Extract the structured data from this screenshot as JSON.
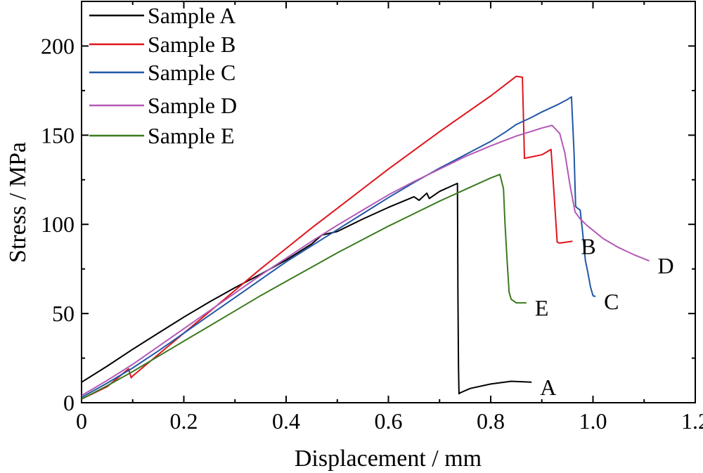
{
  "chart_data": {
    "type": "line",
    "title": "",
    "xlabel": "Displacement / mm",
    "ylabel": "Stress / MPa",
    "xlim": [
      0,
      1.2
    ],
    "ylim": [
      0,
      225
    ],
    "x_ticks": [
      0,
      0.2,
      0.4,
      0.6,
      0.8,
      1.0,
      1.2
    ],
    "x_tick_labels": [
      "0",
      "0.2",
      "0.4",
      "0.6",
      "0.8",
      "1.0",
      "1.2"
    ],
    "y_ticks": [
      0,
      50,
      100,
      150,
      200
    ],
    "y_tick_labels": [
      "0",
      "50",
      "100",
      "150",
      "200"
    ],
    "grid": false,
    "legend_position": "top-left",
    "series": [
      {
        "name": "Sample A",
        "end_label": "A",
        "color": "#000000",
        "x": [
          0.0,
          0.05,
          0.1,
          0.15,
          0.2,
          0.25,
          0.3,
          0.35,
          0.4,
          0.45,
          0.47,
          0.5,
          0.55,
          0.6,
          0.65,
          0.66,
          0.675,
          0.68,
          0.7,
          0.735,
          0.736,
          0.737,
          0.738,
          0.74,
          0.76,
          0.8,
          0.84,
          0.88
        ],
        "y": [
          11.5,
          20.5,
          30,
          39,
          48,
          56.5,
          64.5,
          72,
          80,
          89,
          94,
          96,
          103,
          109.5,
          115.5,
          113.5,
          117.5,
          114.5,
          118.5,
          123,
          60,
          20,
          5,
          5.5,
          8,
          10.5,
          12,
          11.5
        ]
      },
      {
        "name": "Sample B",
        "end_label": "B",
        "color": "#e0141c",
        "x": [
          0.0,
          0.05,
          0.092,
          0.097,
          0.1,
          0.15,
          0.2,
          0.25,
          0.3,
          0.35,
          0.4,
          0.45,
          0.5,
          0.55,
          0.6,
          0.65,
          0.7,
          0.75,
          0.8,
          0.85,
          0.862,
          0.864,
          0.866,
          0.9,
          0.918,
          0.922,
          0.93,
          0.935,
          0.96
        ],
        "y": [
          2,
          9,
          19,
          14,
          15,
          27,
          39,
          51,
          63,
          75,
          86.5,
          98,
          109,
          120,
          131,
          141.5,
          152,
          162,
          172,
          183,
          182.5,
          160,
          137,
          139,
          142,
          125,
          90,
          89.5,
          90.5
        ]
      },
      {
        "name": "Sample C",
        "end_label": "C",
        "color": "#2157a6",
        "x": [
          0.0,
          0.05,
          0.1,
          0.15,
          0.2,
          0.25,
          0.3,
          0.35,
          0.4,
          0.45,
          0.5,
          0.55,
          0.6,
          0.65,
          0.7,
          0.75,
          0.79,
          0.8,
          0.83,
          0.85,
          0.88,
          0.9,
          0.93,
          0.95,
          0.958,
          0.963,
          0.966,
          0.97,
          0.975,
          0.98,
          0.985,
          0.99,
          0.995,
          1.0,
          1.005
        ],
        "y": [
          3,
          11,
          19.5,
          29,
          39,
          49,
          59,
          69,
          79,
          88,
          97,
          106,
          115,
          123.5,
          131.5,
          139,
          145,
          146.5,
          152,
          156,
          160,
          163,
          167,
          170,
          171.5,
          140,
          110,
          109,
          108,
          95,
          80,
          73,
          65,
          60,
          59.5
        ]
      },
      {
        "name": "Sample D",
        "end_label": "D",
        "color": "#b459b5",
        "x": [
          0.0,
          0.05,
          0.1,
          0.15,
          0.2,
          0.25,
          0.3,
          0.35,
          0.4,
          0.45,
          0.5,
          0.55,
          0.6,
          0.65,
          0.7,
          0.75,
          0.8,
          0.85,
          0.9,
          0.92,
          0.935,
          0.945,
          0.955,
          0.965,
          0.975,
          0.99,
          1.02,
          1.05,
          1.08,
          1.11
        ],
        "y": [
          4,
          12.5,
          21.5,
          31.5,
          41.5,
          51.5,
          61.5,
          71.5,
          81,
          90.5,
          99.5,
          108,
          116.5,
          124,
          131,
          138,
          144,
          149.5,
          154,
          155.5,
          151,
          140,
          122,
          107,
          103,
          99,
          92,
          87,
          83,
          79.5
        ]
      },
      {
        "name": "Sample E",
        "end_label": "E",
        "color": "#3b7a1f",
        "x": [
          0.0,
          0.05,
          0.1,
          0.15,
          0.2,
          0.25,
          0.3,
          0.35,
          0.4,
          0.45,
          0.5,
          0.55,
          0.6,
          0.65,
          0.7,
          0.75,
          0.8,
          0.818,
          0.825,
          0.828,
          0.832,
          0.836,
          0.84,
          0.85,
          0.87
        ],
        "y": [
          2,
          9.5,
          17.5,
          26,
          34.5,
          43,
          51.5,
          60,
          68,
          76,
          84,
          91.5,
          99,
          106,
          113,
          119.5,
          126,
          128,
          120,
          100,
          80,
          62,
          58,
          56,
          56
        ]
      }
    ]
  }
}
